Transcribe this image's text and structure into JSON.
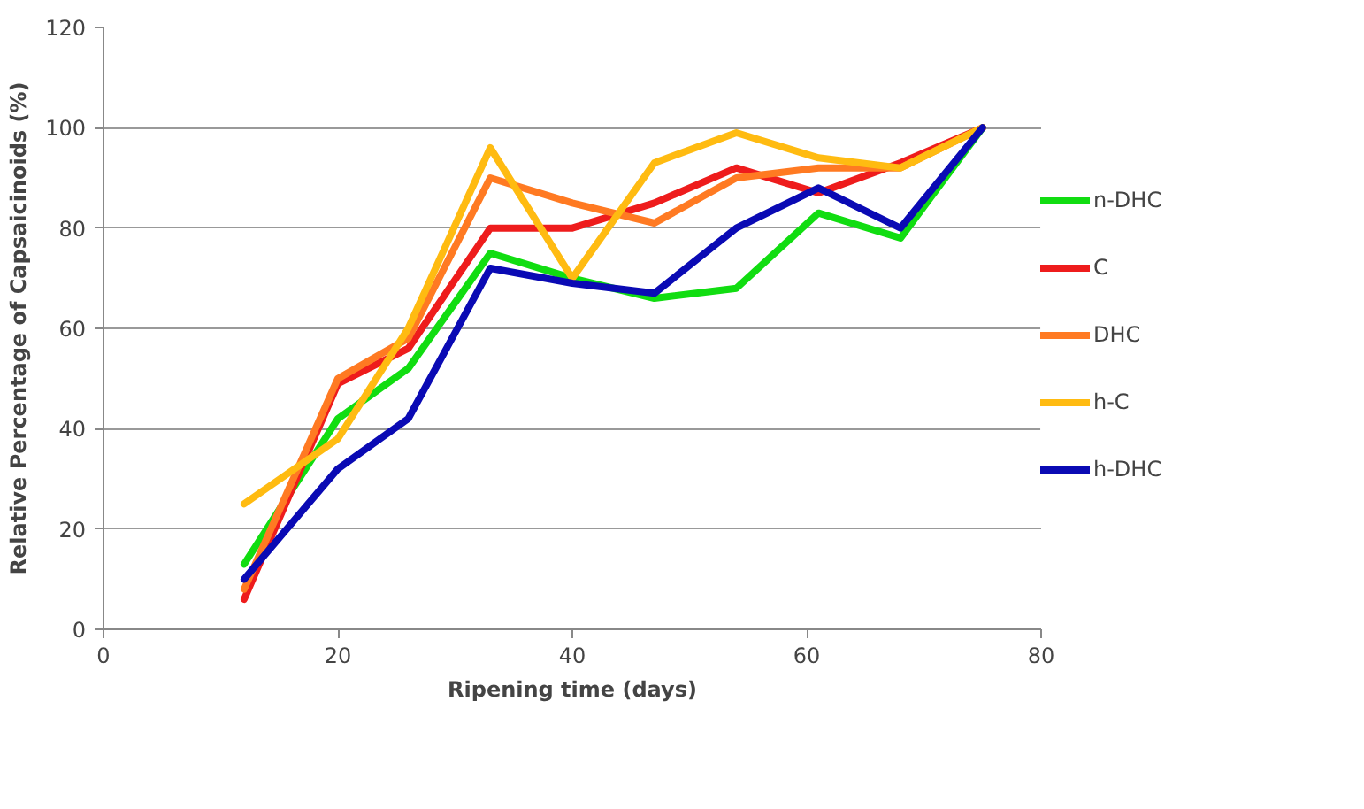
{
  "chart_data": {
    "type": "line",
    "xlabel": "Ripening time (days)",
    "ylabel": "Relative Percentage of Capsaicinoids (%)",
    "x": [
      12,
      20,
      26,
      33,
      40,
      47,
      54,
      61,
      68,
      75
    ],
    "xlim": [
      0,
      80
    ],
    "xticks": [
      0,
      20,
      40,
      60,
      80
    ],
    "ylim": [
      0,
      120
    ],
    "yticks": [
      0,
      20,
      40,
      60,
      80,
      100,
      120
    ],
    "grid": "y",
    "legend": "right",
    "marker": "none",
    "line_style": "solid",
    "series": [
      {
        "name": "n-DHC",
        "color": "#11dd11",
        "values": [
          13,
          42,
          52,
          75,
          70,
          66,
          68,
          83,
          78,
          100
        ]
      },
      {
        "name": "C",
        "color": "#ee1c1c",
        "values": [
          6,
          49,
          56,
          80,
          80,
          85,
          92,
          87,
          93,
          100
        ]
      },
      {
        "name": "DHC",
        "color": "#ff7a22",
        "values": [
          8,
          50,
          58,
          90,
          85,
          81,
          90,
          92,
          92,
          100
        ]
      },
      {
        "name": "h-C",
        "color": "#ffbb11",
        "values": [
          25,
          38,
          60,
          96,
          70,
          93,
          99,
          94,
          92,
          100
        ]
      },
      {
        "name": "h-DHC",
        "color": "#0a0ab4",
        "values": [
          10,
          32,
          42,
          72,
          69,
          67,
          80,
          88,
          80,
          100
        ]
      }
    ]
  }
}
